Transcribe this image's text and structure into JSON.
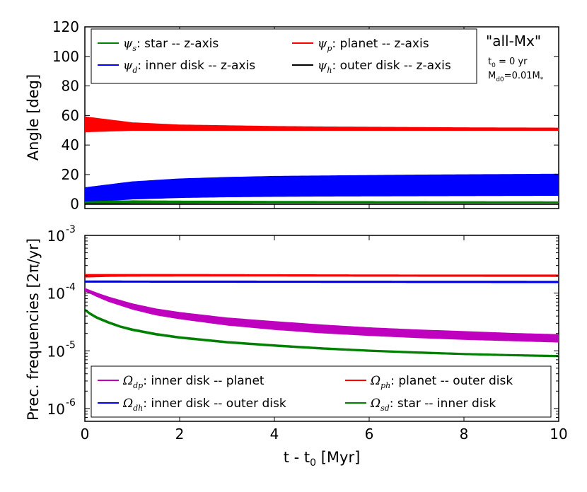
{
  "chart_data": [
    {
      "type": "line",
      "panel": "top",
      "ylabel": "Angle [deg]",
      "xlabel": "",
      "xlim": [
        0,
        10
      ],
      "ylim": [
        -3,
        120
      ],
      "xticks": [
        0,
        2,
        4,
        6,
        8,
        10
      ],
      "yticks": [
        0,
        20,
        40,
        60,
        80,
        100,
        120
      ],
      "ytick_labels": [
        "0",
        "20",
        "40",
        "60",
        "80",
        "100",
        "120"
      ],
      "annotations": {
        "model": "\"all-Mx\"",
        "t0_text": "t",
        "t0_sub": "0",
        "t0_value": " = 0 yr",
        "md0_text": "M",
        "md0_sub": "d0",
        "md0_value": "=0.01M",
        "md0_star": "*"
      },
      "legend_position": "top",
      "series": [
        {
          "symbol": "ψ",
          "sub": "p",
          "label": ": planet -- z-axis",
          "color": "#ff0000",
          "x": [
            0,
            0.5,
            1,
            2,
            3,
            4,
            5,
            6,
            7,
            8,
            9,
            10
          ],
          "upper": [
            59,
            57,
            55,
            53.5,
            53,
            52.5,
            52.2,
            52,
            51.8,
            51.6,
            51.5,
            51.4
          ],
          "lower": [
            49,
            49.5,
            50,
            50,
            50,
            50,
            50,
            50,
            50,
            50,
            50,
            50
          ]
        },
        {
          "symbol": "ψ",
          "sub": "d",
          "label": ": inner disk -- z-axis",
          "color": "#0000ff",
          "x": [
            0,
            0.5,
            1,
            2,
            3,
            4,
            5,
            6,
            7,
            8,
            9,
            10
          ],
          "upper": [
            11,
            13,
            15,
            17,
            18,
            18.7,
            19,
            19.3,
            19.6,
            19.8,
            20,
            20.2
          ],
          "lower": [
            1,
            2.5,
            3.5,
            4.5,
            5,
            5.3,
            5.5,
            5.6,
            5.7,
            5.8,
            5.9,
            6
          ]
        },
        {
          "symbol": "ψ",
          "sub": "s",
          "label": ": star -- z-axis",
          "color": "#008000",
          "x": [
            0,
            0.5,
            1,
            2,
            4,
            6,
            8,
            10
          ],
          "upper": [
            1.5,
            2,
            2.2,
            2,
            1.8,
            1.7,
            1.6,
            1.5
          ],
          "lower": [
            0,
            0.5,
            0.8,
            0.9,
            1,
            1,
            1,
            1
          ]
        },
        {
          "symbol": "ψ",
          "sub": "h",
          "label": ": outer disk -- z-axis",
          "color": "#000000",
          "x": [
            0,
            10
          ],
          "upper": [
            0,
            0
          ],
          "lower": [
            0,
            0
          ]
        }
      ]
    },
    {
      "type": "line",
      "panel": "bottom",
      "ylabel": "Prec. frequencies [2π/yr]",
      "xlabel": "t - t",
      "xlabel_sub": "0",
      "xlabel_unit": " [Myr]",
      "xlim": [
        0,
        10
      ],
      "ylim": [
        6e-07,
        0.001
      ],
      "yscale": "log",
      "xticks": [
        0,
        2,
        4,
        6,
        8,
        10
      ],
      "xtick_labels": [
        "0",
        "2",
        "4",
        "6",
        "8",
        "10"
      ],
      "yticks": [
        1e-06,
        1e-05,
        0.0001,
        0.001
      ],
      "ytick_mant": [
        "10",
        "10",
        "10",
        "10"
      ],
      "ytick_exp": [
        "-6",
        "-5",
        "-4",
        "-3"
      ],
      "legend_position": "bottom",
      "series": [
        {
          "symbol": "Ω",
          "sub": "dp",
          "label": ": inner disk -- planet",
          "color": "#bf00bf",
          "x": [
            0,
            0.25,
            0.5,
            1,
            1.5,
            2,
            3,
            4,
            5,
            6,
            7,
            8,
            9,
            10
          ],
          "upper": [
            0.00012,
            0.0001,
            8.5e-05,
            6.5e-05,
            5.3e-05,
            4.6e-05,
            3.7e-05,
            3.2e-05,
            2.8e-05,
            2.5e-05,
            2.3e-05,
            2.15e-05,
            2e-05,
            1.9e-05
          ],
          "lower": [
            0.00011,
            8.8e-05,
            7.2e-05,
            5.3e-05,
            4.2e-05,
            3.6e-05,
            2.8e-05,
            2.35e-05,
            2.05e-05,
            1.85e-05,
            1.7e-05,
            1.58e-05,
            1.5e-05,
            1.42e-05
          ]
        },
        {
          "symbol": "Ω",
          "sub": "ph",
          "label": ": planet -- outer disk",
          "color": "#ff0000",
          "x": [
            0,
            0.5,
            1,
            2,
            4,
            6,
            8,
            10
          ],
          "upper": [
            0.00021,
            0.00021,
            0.00021,
            0.00021,
            0.000208,
            0.000206,
            0.000205,
            0.000205
          ],
          "lower": [
            0.00019,
            0.000195,
            0.000197,
            0.000198,
            0.000198,
            0.000197,
            0.000196,
            0.000195
          ]
        },
        {
          "symbol": "Ω",
          "sub": "dh",
          "label": ": inner disk -- outer disk",
          "color": "#0000ff",
          "x": [
            0,
            10
          ],
          "upper": [
            0.000162,
            0.00016
          ],
          "lower": [
            0.000155,
            0.000152
          ]
        },
        {
          "symbol": "Ω",
          "sub": "sd",
          "label": ": star -- inner disk",
          "color": "#008000",
          "x": [
            0,
            0.1,
            0.25,
            0.5,
            0.75,
            1,
            1.5,
            2,
            3,
            4,
            5,
            6,
            7,
            8,
            9,
            10
          ],
          "upper": [
            5.3e-05,
            4.6e-05,
            3.9e-05,
            3.2e-05,
            2.7e-05,
            2.4e-05,
            2e-05,
            1.75e-05,
            1.45e-05,
            1.27e-05,
            1.13e-05,
            1.03e-05,
            9.6e-06,
            9e-06,
            8.6e-06,
            8.3e-06
          ],
          "lower": [
            5e-05,
            4.3e-05,
            3.65e-05,
            3e-05,
            2.55e-05,
            2.25e-05,
            1.88e-05,
            1.65e-05,
            1.37e-05,
            1.2e-05,
            1.07e-05,
            9.8e-06,
            9.1e-06,
            8.6e-06,
            8.2e-06,
            7.9e-06
          ]
        }
      ]
    }
  ]
}
